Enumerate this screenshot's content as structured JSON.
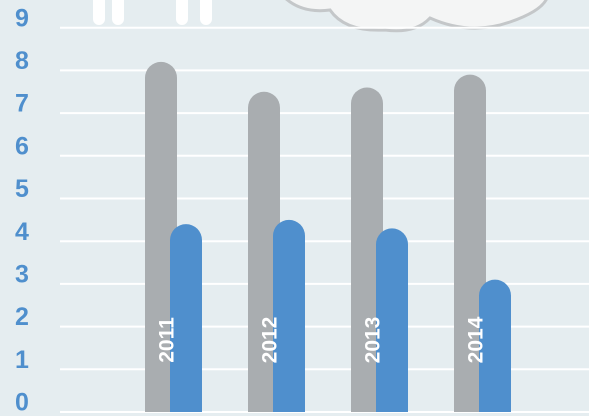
{
  "chart_data": {
    "type": "bar",
    "categories": [
      "2011",
      "2012",
      "2013",
      "2014"
    ],
    "series": [
      {
        "color": "#a9adb0",
        "values": [
          8.2,
          7.5,
          7.6,
          7.9
        ]
      },
      {
        "color": "#4f8fcd",
        "values": [
          4.4,
          4.5,
          4.3,
          3.1
        ]
      }
    ],
    "ylim": [
      0,
      9
    ],
    "yticks": [
      0,
      1,
      2,
      3,
      4,
      5,
      6,
      7,
      8,
      9
    ],
    "grid": true
  }
}
